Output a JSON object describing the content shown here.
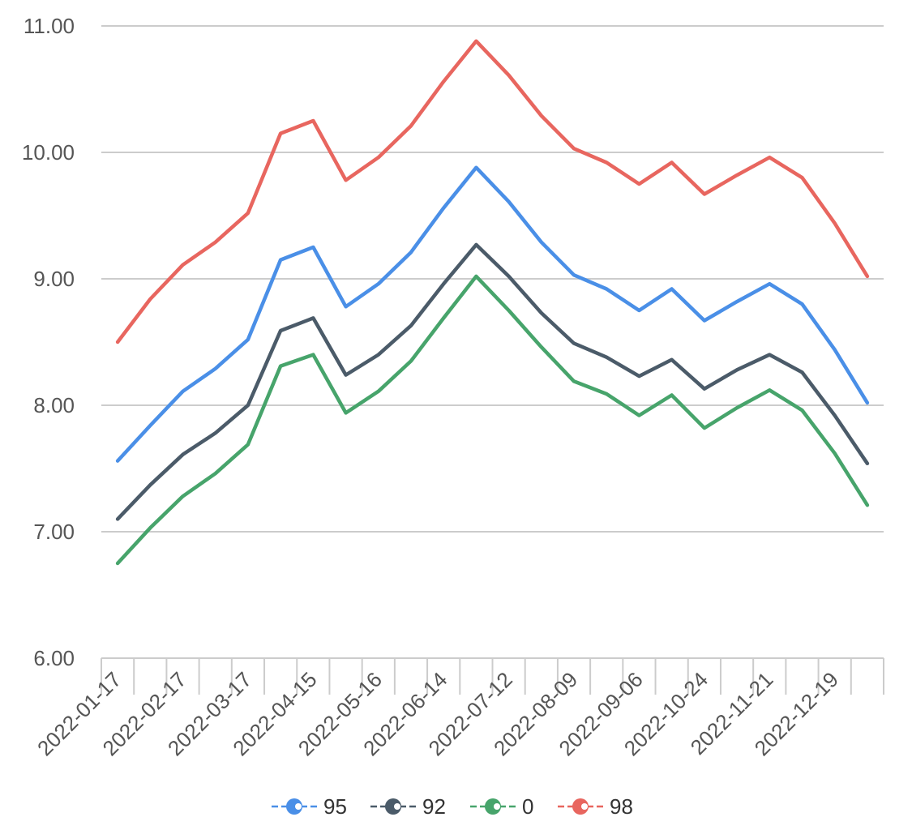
{
  "chart_data": {
    "type": "line",
    "title": "",
    "xlabel": "",
    "ylabel": "",
    "ylim": [
      6,
      11
    ],
    "y_ticks": [
      "6.00",
      "7.00",
      "8.00",
      "9.00",
      "10.00",
      "11.00"
    ],
    "grid": "horizontal",
    "legend_position": "bottom",
    "x_tick_labels": [
      "2022-01-17",
      "2022-02-17",
      "2022-03-17",
      "2022-04-15",
      "2022-05-16",
      "2022-06-14",
      "2022-07-12",
      "2022-08-09",
      "2022-09-06",
      "2022-10-24",
      "2022-11-21",
      "2022-12-19"
    ],
    "series": [
      {
        "name": "95",
        "color": "#4a8fe7",
        "values": [
          7.56,
          7.84,
          8.11,
          8.29,
          8.52,
          9.15,
          9.25,
          8.78,
          8.96,
          9.21,
          9.56,
          9.88,
          9.61,
          9.29,
          9.03,
          8.92,
          8.75,
          8.92,
          8.67,
          8.82,
          8.96,
          8.8,
          8.44,
          8.02
        ]
      },
      {
        "name": "92",
        "color": "#4b5b69",
        "values": [
          7.1,
          7.37,
          7.61,
          7.78,
          8.0,
          8.59,
          8.69,
          8.24,
          8.4,
          8.63,
          8.96,
          9.27,
          9.02,
          8.73,
          8.49,
          8.38,
          8.23,
          8.36,
          8.13,
          8.28,
          8.4,
          8.26,
          7.92,
          7.54
        ]
      },
      {
        "name": "0",
        "color": "#47a46b",
        "values": [
          6.75,
          7.03,
          7.28,
          7.46,
          7.69,
          8.31,
          8.4,
          7.94,
          8.11,
          8.35,
          8.69,
          9.02,
          8.75,
          8.46,
          8.19,
          8.09,
          7.92,
          8.08,
          7.82,
          7.98,
          8.12,
          7.96,
          7.62,
          7.21
        ]
      },
      {
        "name": "98",
        "color": "#e8665f",
        "values": [
          8.5,
          8.84,
          9.11,
          9.29,
          9.52,
          10.15,
          10.25,
          9.78,
          9.96,
          10.21,
          10.56,
          10.88,
          10.61,
          10.29,
          10.03,
          9.92,
          9.75,
          9.92,
          9.67,
          9.82,
          9.96,
          9.8,
          9.44,
          9.02
        ]
      }
    ]
  }
}
